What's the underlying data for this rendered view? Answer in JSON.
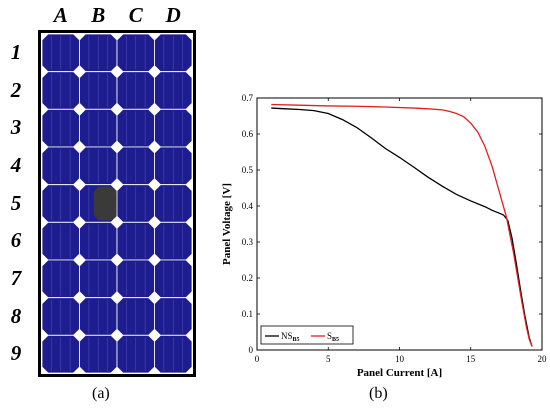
{
  "panel_a": {
    "caption": "(a)",
    "columns": [
      "A",
      "B",
      "C",
      "D"
    ],
    "rows": [
      "1",
      "2",
      "3",
      "4",
      "5",
      "6",
      "7",
      "8",
      "9"
    ],
    "shaded_cell": {
      "column": "B",
      "row": "5"
    },
    "colors": {
      "cell": "#1e1d8f",
      "shade": "#3a3a3a",
      "frame": "#000000",
      "grid": "#ffffff"
    }
  },
  "panel_b": {
    "caption": "(b)"
  },
  "chart_data": {
    "type": "line",
    "xlabel": "Panel Current [A]",
    "ylabel": "Panel Voltage [V]",
    "xlim": [
      0,
      20
    ],
    "ylim": [
      0,
      0.7
    ],
    "xticks": [
      "0",
      "5",
      "10",
      "15",
      "20"
    ],
    "yticks": [
      "0",
      "0.1",
      "0.2",
      "0.3",
      "0.4",
      "0.5",
      "0.6",
      "0.7"
    ],
    "grid": false,
    "legend_position": "bottom-left",
    "series": [
      {
        "name": "NS",
        "subscript": "B5",
        "color": "#000000",
        "x": [
          1,
          2,
          3,
          4,
          5,
          6,
          7,
          8,
          9,
          10,
          11,
          12,
          13,
          14,
          15,
          16,
          16.5,
          17,
          17.3,
          17.6,
          17.9,
          18.2,
          18.5,
          18.8,
          19.1,
          19.3
        ],
        "y": [
          0.672,
          0.67,
          0.668,
          0.665,
          0.657,
          0.64,
          0.618,
          0.59,
          0.56,
          0.535,
          0.508,
          0.48,
          0.455,
          0.432,
          0.414,
          0.398,
          0.388,
          0.38,
          0.375,
          0.36,
          0.31,
          0.24,
          0.165,
          0.095,
          0.035,
          0.01
        ]
      },
      {
        "name": "S",
        "subscript": "B5",
        "color": "#e02020",
        "x": [
          1,
          3,
          5,
          7,
          9,
          11,
          12,
          13,
          13.5,
          14,
          14.5,
          15,
          15.5,
          16,
          16.5,
          17,
          17.5,
          18,
          18.3,
          18.6,
          18.9,
          19.1,
          19.3
        ],
        "y": [
          0.682,
          0.68,
          0.678,
          0.677,
          0.675,
          0.672,
          0.67,
          0.667,
          0.663,
          0.657,
          0.648,
          0.63,
          0.605,
          0.565,
          0.51,
          0.44,
          0.37,
          0.27,
          0.2,
          0.13,
          0.065,
          0.03,
          0.01
        ]
      }
    ]
  }
}
